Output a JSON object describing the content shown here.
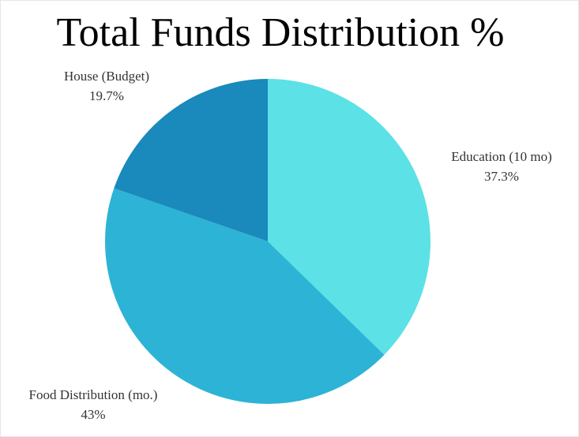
{
  "chart_data": {
    "type": "pie",
    "title": "Total Funds Distribution %",
    "start_angle_deg": 0,
    "direction": "clockwise",
    "slices": [
      {
        "label": "Education (10 mo)",
        "value": 37.3,
        "value_label": "37.3%",
        "color": "#5ce1e6"
      },
      {
        "label": "Food Distribution (mo.)",
        "value": 43,
        "value_label": "43%",
        "color": "#2db3d5"
      },
      {
        "label": "House (Budget)",
        "value": 19.7,
        "value_label": "19.7%",
        "color": "#1a89bb"
      }
    ]
  }
}
